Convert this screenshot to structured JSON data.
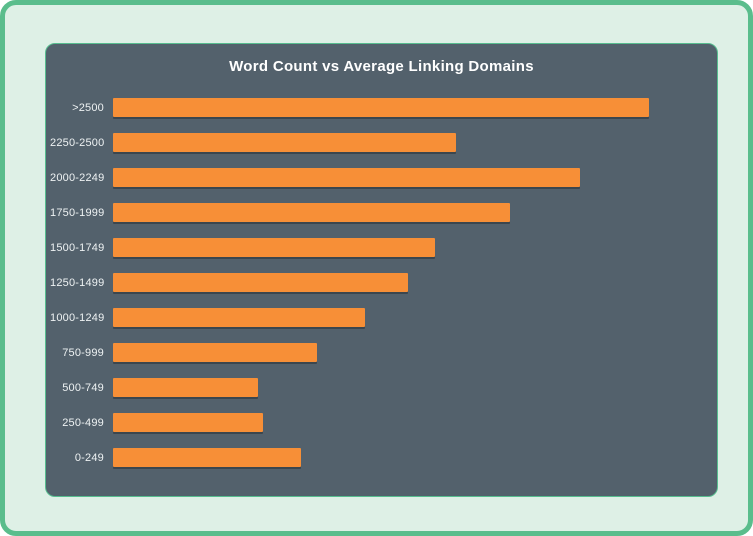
{
  "page": {
    "title": "Word Count vs Average Linking Domains"
  },
  "colors": {
    "outer_border": "#5abd8c",
    "page_bg": "#def0e6",
    "card_bg": "#53616c",
    "card_border": "#57bd8f",
    "bar": "#f78f37",
    "bar_shadow": "rgba(0,0,0,0.28)",
    "title_text": "#ffffff",
    "label_text": "#eef2f3"
  },
  "chart_data": {
    "type": "bar",
    "orientation": "horizontal",
    "title": "Word Count vs Average Linking Domains",
    "categories": [
      ">2500",
      "2250-2500",
      "2000-2249",
      "1750-1999",
      "1500-1749",
      "1250-1499",
      "1000-1249",
      "750-999",
      "500-749",
      "250-499",
      "0-249"
    ],
    "values": [
      100,
      64,
      87,
      74,
      60,
      55,
      47,
      38,
      27,
      28,
      35
    ],
    "values_note": "relative bar length, longest bar = 100; no value axis is shown in the image",
    "xlabel": "",
    "ylabel": "",
    "grid": false,
    "legend": false,
    "bar_color": "#f78f37"
  }
}
